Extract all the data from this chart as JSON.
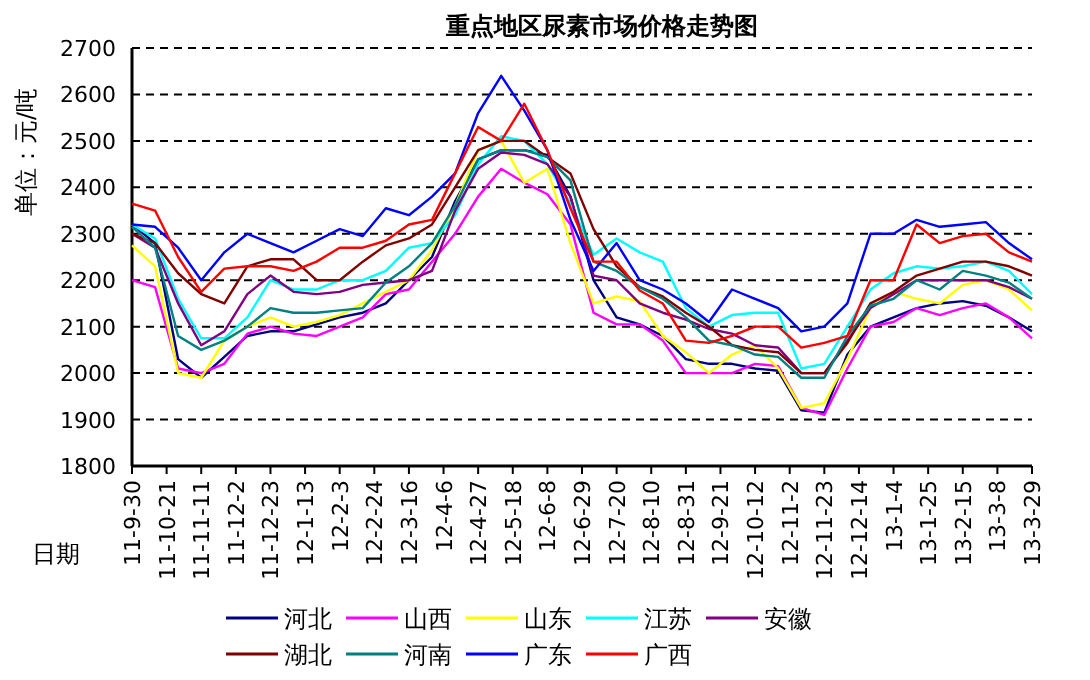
{
  "chart_data": {
    "type": "line",
    "title": "重点地区尿素市场价格走势图",
    "xlabel": "日期",
    "ylabel": "单位：元/吨",
    "grid": "y",
    "legend": "bottom",
    "marker": "none",
    "line_style": "solid",
    "x": [
      "2011-09-30",
      "2011-10-14",
      "2011-10-28",
      "2011-11-11",
      "2011-11-25",
      "2011-12-09",
      "2011-12-23",
      "2012-01-06",
      "2012-01-20",
      "2012-02-03",
      "2012-02-17",
      "2012-03-02",
      "2012-03-16",
      "2012-03-30",
      "2012-04-13",
      "2012-04-27",
      "2012-05-11",
      "2012-05-25",
      "2012-06-08",
      "2012-06-22",
      "2012-07-06",
      "2012-07-20",
      "2012-08-03",
      "2012-08-17",
      "2012-08-31",
      "2012-09-14",
      "2012-09-28",
      "2012-10-12",
      "2012-10-26",
      "2012-11-09",
      "2012-11-23",
      "2012-12-07",
      "2012-12-21",
      "2013-01-04",
      "2013-01-18",
      "2013-02-01",
      "2013-02-15",
      "2013-03-01",
      "2013-03-15",
      "2013-03-29"
    ],
    "xlim": [
      "2011-09-30",
      "2013-03-29"
    ],
    "xticks": [
      {
        "value": "2011-09-30",
        "label": "11-9-30"
      },
      {
        "value": "2011-10-21",
        "label": "11-10-21"
      },
      {
        "value": "2011-11-11",
        "label": "11-11-11"
      },
      {
        "value": "2011-12-02",
        "label": "11-12-2"
      },
      {
        "value": "2011-12-23",
        "label": "11-12-23"
      },
      {
        "value": "2012-01-13",
        "label": "12-1-13"
      },
      {
        "value": "2012-02-03",
        "label": "12-2-3"
      },
      {
        "value": "2012-02-24",
        "label": "12-2-24"
      },
      {
        "value": "2012-03-16",
        "label": "12-3-16"
      },
      {
        "value": "2012-04-06",
        "label": "12-4-6"
      },
      {
        "value": "2012-04-27",
        "label": "12-4-27"
      },
      {
        "value": "2012-05-18",
        "label": "12-5-18"
      },
      {
        "value": "2012-06-08",
        "label": "12-6-8"
      },
      {
        "value": "2012-06-29",
        "label": "12-6-29"
      },
      {
        "value": "2012-07-20",
        "label": "12-7-20"
      },
      {
        "value": "2012-08-10",
        "label": "12-8-10"
      },
      {
        "value": "2012-08-31",
        "label": "12-8-31"
      },
      {
        "value": "2012-09-21",
        "label": "12-9-21"
      },
      {
        "value": "2012-10-12",
        "label": "12-10-12"
      },
      {
        "value": "2012-11-02",
        "label": "12-11-2"
      },
      {
        "value": "2012-11-23",
        "label": "12-11-23"
      },
      {
        "value": "2012-12-14",
        "label": "12-12-14"
      },
      {
        "value": "2013-01-04",
        "label": "13-1-4"
      },
      {
        "value": "2013-01-25",
        "label": "13-1-25"
      },
      {
        "value": "2013-02-15",
        "label": "13-2-15"
      },
      {
        "value": "2013-03-08",
        "label": "13-3-8"
      },
      {
        "value": "2013-03-29",
        "label": "13-3-29"
      }
    ],
    "ylim": [
      1800,
      2700
    ],
    "yticks": [
      1800,
      1900,
      2000,
      2100,
      2200,
      2300,
      2400,
      2500,
      2600,
      2700
    ],
    "series": [
      {
        "name": "河北",
        "color": "#000080",
        "values": [
          2320,
          2280,
          2030,
          1990,
          2035,
          2080,
          2090,
          2090,
          2105,
          2120,
          2130,
          2150,
          2200,
          2250,
          2370,
          2460,
          2480,
          2480,
          2470,
          2380,
          2200,
          2120,
          2105,
          2080,
          2030,
          2020,
          2020,
          2010,
          2005,
          1920,
          1915,
          2040,
          2100,
          2120,
          2140,
          2150,
          2155,
          2145,
          2120,
          2090
        ]
      },
      {
        "name": "山西",
        "color": "#ff00ff",
        "values": [
          2200,
          2185,
          2010,
          2000,
          2020,
          2085,
          2100,
          2085,
          2080,
          2100,
          2120,
          2170,
          2180,
          2240,
          2300,
          2380,
          2440,
          2410,
          2385,
          2320,
          2130,
          2105,
          2105,
          2070,
          2000,
          2000,
          2000,
          2020,
          2015,
          1925,
          1910,
          2010,
          2100,
          2110,
          2140,
          2125,
          2140,
          2150,
          2120,
          2075
        ]
      },
      {
        "name": "山东",
        "color": "#ffff00",
        "values": [
          2275,
          2230,
          2000,
          1990,
          2070,
          2100,
          2120,
          2100,
          2110,
          2125,
          2150,
          2175,
          2200,
          2265,
          2360,
          2480,
          2500,
          2410,
          2440,
          2280,
          2150,
          2165,
          2155,
          2080,
          2045,
          2000,
          2040,
          2060,
          2010,
          1925,
          1935,
          2030,
          2140,
          2175,
          2160,
          2150,
          2190,
          2200,
          2180,
          2135
        ]
      },
      {
        "name": "江苏",
        "color": "#00ffff",
        "values": [
          2320,
          2290,
          2160,
          2075,
          2075,
          2120,
          2200,
          2180,
          2180,
          2200,
          2200,
          2220,
          2270,
          2280,
          2340,
          2450,
          2510,
          2500,
          2450,
          2365,
          2255,
          2290,
          2260,
          2240,
          2140,
          2100,
          2125,
          2130,
          2130,
          2010,
          2020,
          2100,
          2180,
          2215,
          2230,
          2225,
          2230,
          2240,
          2220,
          2170
        ]
      },
      {
        "name": "安徽",
        "color": "#800080",
        "values": [
          2300,
          2270,
          2150,
          2060,
          2090,
          2170,
          2210,
          2175,
          2170,
          2175,
          2190,
          2195,
          2200,
          2220,
          2350,
          2440,
          2475,
          2470,
          2450,
          2380,
          2210,
          2200,
          2150,
          2130,
          2115,
          2095,
          2085,
          2060,
          2055,
          2000,
          2000,
          2070,
          2140,
          2170,
          2200,
          2200,
          2200,
          2200,
          2185,
          2160
        ]
      },
      {
        "name": "湖北",
        "color": "#800000",
        "values": [
          2300,
          2280,
          2215,
          2170,
          2150,
          2230,
          2245,
          2245,
          2200,
          2200,
          2240,
          2275,
          2290,
          2320,
          2400,
          2480,
          2500,
          2500,
          2465,
          2430,
          2310,
          2230,
          2185,
          2165,
          2130,
          2100,
          2060,
          2050,
          2045,
          2000,
          2000,
          2065,
          2150,
          2175,
          2210,
          2225,
          2240,
          2240,
          2230,
          2210
        ]
      },
      {
        "name": "河南",
        "color": "#008080",
        "values": [
          2315,
          2270,
          2080,
          2050,
          2070,
          2100,
          2140,
          2130,
          2130,
          2135,
          2140,
          2195,
          2230,
          2280,
          2360,
          2460,
          2480,
          2480,
          2465,
          2415,
          2240,
          2220,
          2185,
          2160,
          2120,
          2070,
          2060,
          2040,
          2035,
          1990,
          1990,
          2080,
          2145,
          2160,
          2200,
          2180,
          2220,
          2210,
          2195,
          2160
        ]
      },
      {
        "name": "广东",
        "color": "#0000ff",
        "values": [
          2320,
          2315,
          2270,
          2200,
          2260,
          2300,
          2280,
          2260,
          2285,
          2310,
          2295,
          2355,
          2340,
          2380,
          2430,
          2560,
          2640,
          2565,
          2480,
          2330,
          2220,
          2280,
          2200,
          2180,
          2150,
          2110,
          2180,
          2160,
          2140,
          2090,
          2100,
          2150,
          2300,
          2300,
          2330,
          2315,
          2320,
          2325,
          2280,
          2245
        ]
      },
      {
        "name": "广西",
        "color": "#ff0000",
        "values": [
          2365,
          2350,
          2250,
          2175,
          2225,
          2230,
          2230,
          2220,
          2240,
          2270,
          2270,
          2285,
          2320,
          2330,
          2430,
          2530,
          2500,
          2580,
          2480,
          2355,
          2240,
          2240,
          2178,
          2150,
          2070,
          2065,
          2080,
          2100,
          2100,
          2055,
          2065,
          2080,
          2200,
          2200,
          2320,
          2280,
          2295,
          2300,
          2260,
          2240
        ]
      }
    ]
  }
}
